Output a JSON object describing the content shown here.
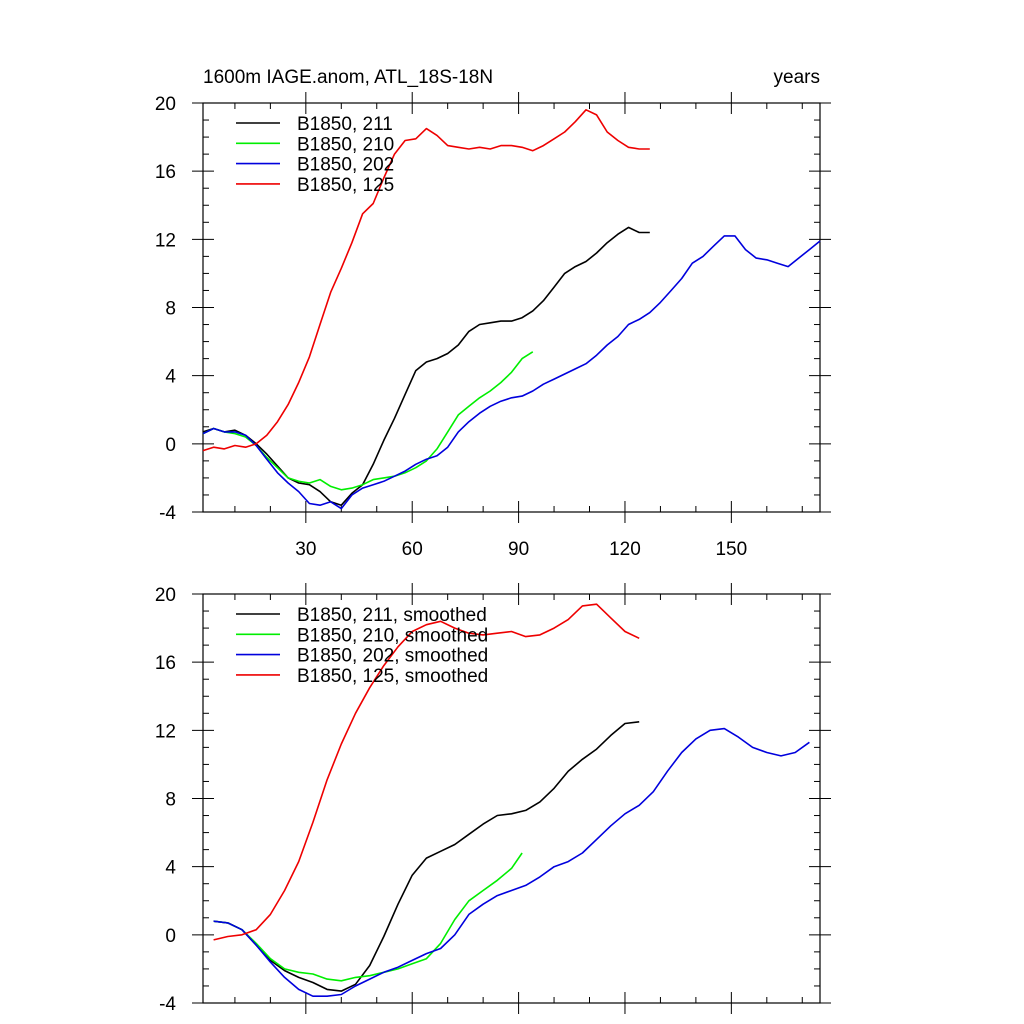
{
  "chart_data": [
    {
      "type": "line",
      "title_left": "1600m IAGE.anom, ATL_18S-18N",
      "title_right": "years",
      "xlim": [
        1,
        175
      ],
      "ylim": [
        -4,
        20
      ],
      "x_ticks": [
        30,
        60,
        90,
        120,
        150
      ],
      "x_tick_labels": [
        "30",
        "60",
        "90",
        "120",
        "150"
      ],
      "y_ticks": [
        -4,
        0,
        4,
        8,
        12,
        16,
        20
      ],
      "y_tick_labels": [
        "-4",
        "0",
        "4",
        "8",
        "12",
        "16",
        "20"
      ],
      "legend_placement": "top-left",
      "series": [
        {
          "name": "B1850, 211",
          "color": "#000000",
          "x": [
            1,
            4,
            7,
            10,
            13,
            16,
            19,
            22,
            25,
            28,
            31,
            34,
            37,
            40,
            43,
            46,
            49,
            52,
            55,
            58,
            61,
            64,
            67,
            70,
            73,
            76,
            79,
            82,
            85,
            88,
            91,
            94,
            97,
            100,
            103,
            106,
            109,
            112,
            115,
            118,
            121,
            124,
            127
          ],
          "y": [
            0.7,
            0.9,
            0.7,
            0.8,
            0.5,
            0.0,
            -0.6,
            -1.3,
            -2.0,
            -2.3,
            -2.4,
            -2.8,
            -3.4,
            -3.6,
            -2.9,
            -2.4,
            -1.2,
            0.2,
            1.5,
            2.9,
            4.3,
            4.8,
            5.0,
            5.3,
            5.8,
            6.6,
            7.0,
            7.1,
            7.2,
            7.2,
            7.4,
            7.8,
            8.4,
            9.2,
            10.0,
            10.4,
            10.7,
            11.2,
            11.8,
            12.3,
            12.7,
            12.4,
            12.4
          ]
        },
        {
          "name": "B1850, 210",
          "color": "#00ee00",
          "x": [
            1,
            4,
            7,
            10,
            13,
            16,
            19,
            22,
            25,
            28,
            31,
            34,
            37,
            40,
            43,
            46,
            49,
            52,
            55,
            58,
            61,
            64,
            67,
            70,
            73,
            76,
            79,
            82,
            85,
            88,
            91,
            94
          ],
          "y": [
            0.6,
            0.9,
            0.7,
            0.6,
            0.4,
            -0.1,
            -0.8,
            -1.4,
            -2.0,
            -2.2,
            -2.3,
            -2.1,
            -2.5,
            -2.7,
            -2.6,
            -2.4,
            -2.1,
            -2.0,
            -1.9,
            -1.7,
            -1.4,
            -1.0,
            -0.3,
            0.7,
            1.7,
            2.2,
            2.7,
            3.1,
            3.6,
            4.2,
            5.0,
            5.4
          ]
        },
        {
          "name": "B1850, 202",
          "color": "#0000dd",
          "x": [
            1,
            4,
            7,
            10,
            13,
            16,
            19,
            22,
            25,
            28,
            31,
            34,
            37,
            40,
            43,
            46,
            49,
            52,
            55,
            58,
            61,
            64,
            67,
            70,
            73,
            76,
            79,
            82,
            85,
            88,
            91,
            94,
            97,
            100,
            103,
            106,
            109,
            112,
            115,
            118,
            121,
            124,
            127,
            130,
            133,
            136,
            139,
            142,
            145,
            148,
            151,
            154,
            157,
            160,
            163,
            166,
            169,
            172,
            175
          ],
          "y": [
            0.6,
            0.9,
            0.7,
            0.7,
            0.5,
            -0.1,
            -0.9,
            -1.7,
            -2.3,
            -2.8,
            -3.5,
            -3.6,
            -3.4,
            -3.8,
            -3.0,
            -2.6,
            -2.4,
            -2.2,
            -1.9,
            -1.6,
            -1.2,
            -0.9,
            -0.7,
            -0.2,
            0.7,
            1.3,
            1.8,
            2.2,
            2.5,
            2.7,
            2.8,
            3.1,
            3.5,
            3.8,
            4.1,
            4.4,
            4.7,
            5.2,
            5.8,
            6.3,
            7.0,
            7.3,
            7.7,
            8.3,
            9.0,
            9.7,
            10.6,
            11.0,
            11.6,
            12.2,
            12.2,
            11.4,
            10.9,
            10.8,
            10.6,
            10.4,
            10.9,
            11.4,
            11.9
          ]
        },
        {
          "name": "B1850, 125",
          "color": "#ee0000",
          "x": [
            1,
            4,
            7,
            10,
            13,
            16,
            19,
            22,
            25,
            28,
            31,
            34,
            37,
            40,
            43,
            46,
            49,
            52,
            55,
            58,
            61,
            64,
            67,
            70,
            73,
            76,
            79,
            82,
            85,
            88,
            91,
            94,
            97,
            100,
            103,
            106,
            109,
            112,
            115,
            118,
            121,
            124,
            127
          ],
          "y": [
            -0.4,
            -0.2,
            -0.3,
            -0.1,
            -0.2,
            0.0,
            0.5,
            1.3,
            2.3,
            3.6,
            5.1,
            7.0,
            8.9,
            10.3,
            11.8,
            13.5,
            14.1,
            15.6,
            17.0,
            17.8,
            17.9,
            18.5,
            18.1,
            17.5,
            17.4,
            17.3,
            17.4,
            17.3,
            17.5,
            17.5,
            17.4,
            17.2,
            17.5,
            17.9,
            18.3,
            18.9,
            19.6,
            19.3,
            18.3,
            17.8,
            17.4,
            17.3,
            17.3
          ]
        }
      ]
    },
    {
      "type": "line",
      "xlim": [
        1,
        175
      ],
      "ylim": [
        -4,
        20
      ],
      "x_ticks": [
        30,
        60,
        90,
        120,
        150
      ],
      "y_ticks": [
        -4,
        0,
        4,
        8,
        12,
        16,
        20
      ],
      "y_tick_labels": [
        "-4",
        "0",
        "4",
        "8",
        "12",
        "16",
        "20"
      ],
      "legend_placement": "top-left",
      "series": [
        {
          "name": "B1850, 211, smoothed",
          "color": "#000000",
          "x": [
            4,
            8,
            12,
            16,
            20,
            24,
            28,
            32,
            36,
            40,
            44,
            48,
            52,
            56,
            60,
            64,
            68,
            72,
            76,
            80,
            84,
            88,
            92,
            96,
            100,
            104,
            108,
            112,
            116,
            120,
            124
          ],
          "y": [
            0.8,
            0.7,
            0.3,
            -0.6,
            -1.5,
            -2.1,
            -2.5,
            -2.8,
            -3.2,
            -3.3,
            -2.9,
            -1.8,
            -0.1,
            1.8,
            3.5,
            4.5,
            4.9,
            5.3,
            5.9,
            6.5,
            7.0,
            7.1,
            7.3,
            7.8,
            8.6,
            9.6,
            10.3,
            10.9,
            11.7,
            12.4,
            12.5
          ]
        },
        {
          "name": "B1850, 210, smoothed",
          "color": "#00ee00",
          "x": [
            4,
            8,
            12,
            16,
            20,
            24,
            28,
            32,
            36,
            40,
            44,
            48,
            52,
            56,
            60,
            64,
            68,
            72,
            76,
            80,
            84,
            88,
            91
          ],
          "y": [
            0.8,
            0.7,
            0.3,
            -0.5,
            -1.4,
            -2.0,
            -2.2,
            -2.3,
            -2.6,
            -2.7,
            -2.5,
            -2.4,
            -2.2,
            -2.0,
            -1.7,
            -1.4,
            -0.5,
            0.9,
            2.0,
            2.6,
            3.2,
            3.9,
            4.8
          ]
        },
        {
          "name": "B1850, 202, smoothed",
          "color": "#0000dd",
          "x": [
            4,
            8,
            12,
            16,
            20,
            24,
            28,
            32,
            36,
            40,
            44,
            48,
            52,
            56,
            60,
            64,
            68,
            72,
            76,
            80,
            84,
            88,
            92,
            96,
            100,
            104,
            108,
            112,
            116,
            120,
            124,
            128,
            132,
            136,
            140,
            144,
            148,
            152,
            156,
            160,
            164,
            168,
            172
          ],
          "y": [
            0.8,
            0.7,
            0.3,
            -0.6,
            -1.6,
            -2.5,
            -3.2,
            -3.6,
            -3.6,
            -3.5,
            -3.0,
            -2.6,
            -2.2,
            -1.9,
            -1.5,
            -1.1,
            -0.8,
            0.0,
            1.2,
            1.8,
            2.3,
            2.6,
            2.9,
            3.4,
            4.0,
            4.3,
            4.8,
            5.6,
            6.4,
            7.1,
            7.6,
            8.4,
            9.6,
            10.7,
            11.5,
            12.0,
            12.1,
            11.6,
            11.0,
            10.7,
            10.5,
            10.7,
            11.3
          ]
        },
        {
          "name": "B1850, 125, smoothed",
          "color": "#ee0000",
          "x": [
            4,
            8,
            12,
            16,
            20,
            24,
            28,
            32,
            36,
            40,
            44,
            48,
            52,
            56,
            60,
            64,
            68,
            72,
            76,
            80,
            84,
            88,
            92,
            96,
            100,
            104,
            108,
            112,
            116,
            120,
            124
          ],
          "y": [
            -0.3,
            -0.1,
            0.0,
            0.3,
            1.2,
            2.6,
            4.3,
            6.6,
            9.1,
            11.2,
            13.0,
            14.5,
            15.8,
            16.9,
            17.8,
            18.2,
            18.4,
            18.0,
            17.7,
            17.6,
            17.7,
            17.8,
            17.5,
            17.6,
            18.0,
            18.5,
            19.3,
            19.4,
            18.6,
            17.8,
            17.4
          ]
        }
      ]
    }
  ]
}
